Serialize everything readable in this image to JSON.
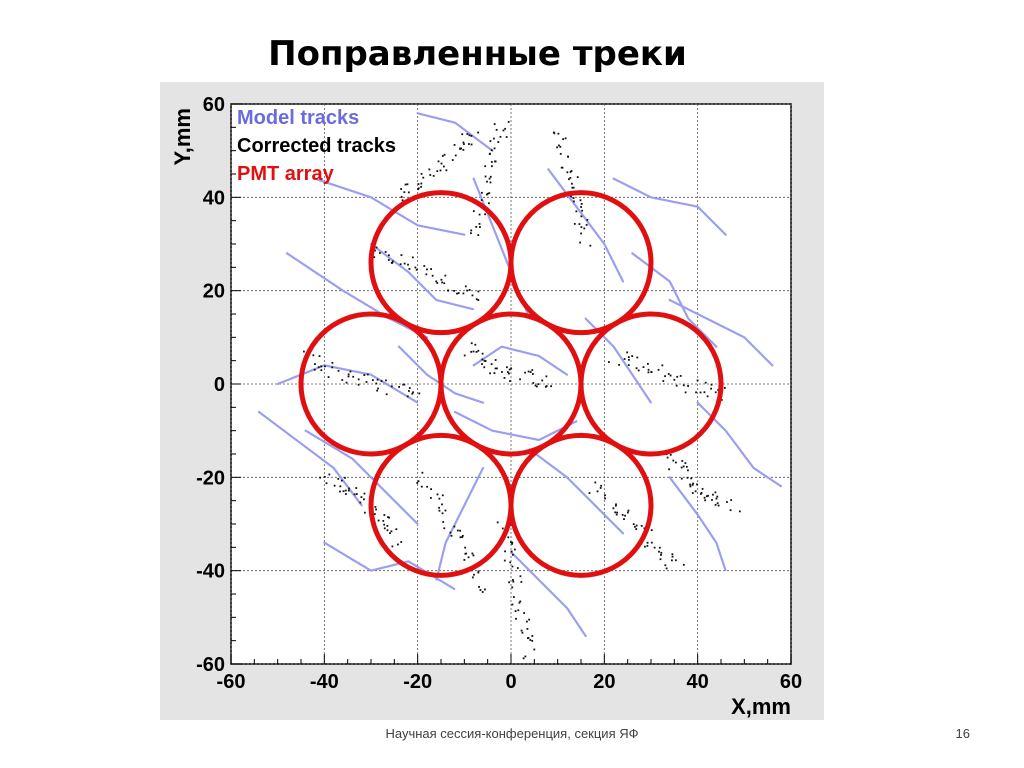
{
  "slide": {
    "title": "Поправленные треки",
    "footer": "Научная сессия-конференция, секция ЯФ",
    "page_number": "16"
  },
  "chart_data": {
    "type": "scatter",
    "xlabel": "X,mm",
    "ylabel": "Y,mm",
    "xlim": [
      -60,
      60
    ],
    "ylim": [
      -60,
      60
    ],
    "xticks": [
      -60,
      -40,
      -20,
      0,
      20,
      40,
      60
    ],
    "yticks": [
      -60,
      -40,
      -20,
      0,
      20,
      40,
      60
    ],
    "grid": true,
    "legend_placement": "top-left",
    "legend": [
      {
        "label": "Model tracks",
        "color": "#6b6be0"
      },
      {
        "label": "Corrected tracks",
        "color": "#000000"
      },
      {
        "label": "PMT array",
        "color": "#e01010"
      }
    ],
    "colors": {
      "model_tracks": "#9a9ef0",
      "corrected_tracks": "#111111",
      "pmt_array": "#e01010"
    },
    "pmt_array": {
      "radius": 15,
      "centers": [
        [
          -15,
          26
        ],
        [
          15,
          26
        ],
        [
          -30,
          0
        ],
        [
          0,
          0
        ],
        [
          30,
          0
        ],
        [
          -15,
          -26
        ],
        [
          15,
          -26
        ]
      ]
    },
    "model_tracks": [
      [
        [
          -42,
          44
        ],
        [
          -30,
          40
        ],
        [
          -20,
          34
        ],
        [
          -10,
          32
        ]
      ],
      [
        [
          -48,
          28
        ],
        [
          -36,
          20
        ],
        [
          -26,
          14
        ],
        [
          -18,
          10
        ]
      ],
      [
        [
          -50,
          0
        ],
        [
          -40,
          4
        ],
        [
          -30,
          2
        ],
        [
          -20,
          -4
        ]
      ],
      [
        [
          -44,
          -10
        ],
        [
          -34,
          -16
        ],
        [
          -26,
          -24
        ],
        [
          -20,
          -30
        ]
      ],
      [
        [
          -40,
          -34
        ],
        [
          -30,
          -40
        ],
        [
          -22,
          -38
        ],
        [
          -12,
          -44
        ]
      ],
      [
        [
          -8,
          44
        ],
        [
          -4,
          34
        ],
        [
          0,
          24
        ],
        [
          4,
          14
        ]
      ],
      [
        [
          8,
          46
        ],
        [
          14,
          38
        ],
        [
          20,
          30
        ],
        [
          24,
          22
        ]
      ],
      [
        [
          22,
          44
        ],
        [
          30,
          40
        ],
        [
          40,
          38
        ],
        [
          46,
          32
        ]
      ],
      [
        [
          34,
          18
        ],
        [
          42,
          14
        ],
        [
          50,
          10
        ],
        [
          56,
          4
        ]
      ],
      [
        [
          40,
          -4
        ],
        [
          46,
          -10
        ],
        [
          52,
          -18
        ],
        [
          58,
          -22
        ]
      ],
      [
        [
          34,
          -20
        ],
        [
          40,
          -28
        ],
        [
          44,
          -34
        ],
        [
          46,
          -40
        ]
      ],
      [
        [
          4,
          -14
        ],
        [
          12,
          -20
        ],
        [
          18,
          -26
        ],
        [
          24,
          -32
        ]
      ],
      [
        [
          -6,
          -18
        ],
        [
          -10,
          -26
        ],
        [
          -14,
          -34
        ],
        [
          -16,
          -42
        ]
      ],
      [
        [
          -8,
          4
        ],
        [
          -2,
          8
        ],
        [
          6,
          6
        ],
        [
          12,
          2
        ]
      ],
      [
        [
          -12,
          -6
        ],
        [
          -4,
          -10
        ],
        [
          6,
          -12
        ],
        [
          14,
          -8
        ]
      ],
      [
        [
          16,
          14
        ],
        [
          22,
          8
        ],
        [
          26,
          2
        ],
        [
          30,
          -4
        ]
      ],
      [
        [
          -30,
          30
        ],
        [
          -22,
          24
        ],
        [
          -16,
          18
        ],
        [
          -8,
          16
        ]
      ],
      [
        [
          -54,
          -6
        ],
        [
          -46,
          -12
        ],
        [
          -38,
          -18
        ],
        [
          -32,
          -26
        ]
      ],
      [
        [
          0,
          -36
        ],
        [
          6,
          -42
        ],
        [
          12,
          -48
        ],
        [
          16,
          -54
        ]
      ],
      [
        [
          -4,
          50
        ],
        [
          -12,
          56
        ],
        [
          -20,
          58
        ]
      ],
      [
        [
          26,
          28
        ],
        [
          34,
          22
        ],
        [
          38,
          14
        ],
        [
          44,
          8
        ]
      ],
      [
        [
          -24,
          8
        ],
        [
          -18,
          2
        ],
        [
          -12,
          -2
        ],
        [
          -6,
          -4
        ]
      ]
    ],
    "corrected_tracks": [
      [
        [
          -30,
          28
        ],
        [
          -22,
          26
        ],
        [
          -14,
          22
        ],
        [
          -6,
          18
        ]
      ],
      [
        [
          -2,
          56
        ],
        [
          -4,
          48
        ],
        [
          -6,
          40
        ],
        [
          -8,
          32
        ]
      ],
      [
        [
          10,
          54
        ],
        [
          12,
          46
        ],
        [
          14,
          38
        ],
        [
          16,
          30
        ]
      ],
      [
        [
          -44,
          6
        ],
        [
          -36,
          2
        ],
        [
          -28,
          0
        ],
        [
          -20,
          -2
        ]
      ],
      [
        [
          22,
          6
        ],
        [
          30,
          4
        ],
        [
          38,
          0
        ],
        [
          46,
          -2
        ]
      ],
      [
        [
          -20,
          -20
        ],
        [
          -14,
          -28
        ],
        [
          -10,
          -36
        ],
        [
          -6,
          -44
        ]
      ],
      [
        [
          18,
          -22
        ],
        [
          24,
          -28
        ],
        [
          30,
          -34
        ],
        [
          36,
          -40
        ]
      ],
      [
        [
          -2,
          -30
        ],
        [
          0,
          -40
        ],
        [
          2,
          -50
        ],
        [
          4,
          -58
        ]
      ],
      [
        [
          32,
          -14
        ],
        [
          38,
          -20
        ],
        [
          42,
          -24
        ],
        [
          48,
          -26
        ]
      ],
      [
        [
          -40,
          -20
        ],
        [
          -34,
          -22
        ],
        [
          -28,
          -28
        ],
        [
          -24,
          -34
        ]
      ],
      [
        [
          -10,
          8
        ],
        [
          -4,
          4
        ],
        [
          2,
          2
        ],
        [
          8,
          0
        ]
      ],
      [
        [
          -24,
          40
        ],
        [
          -18,
          44
        ],
        [
          -12,
          50
        ],
        [
          -8,
          54
        ]
      ]
    ]
  }
}
